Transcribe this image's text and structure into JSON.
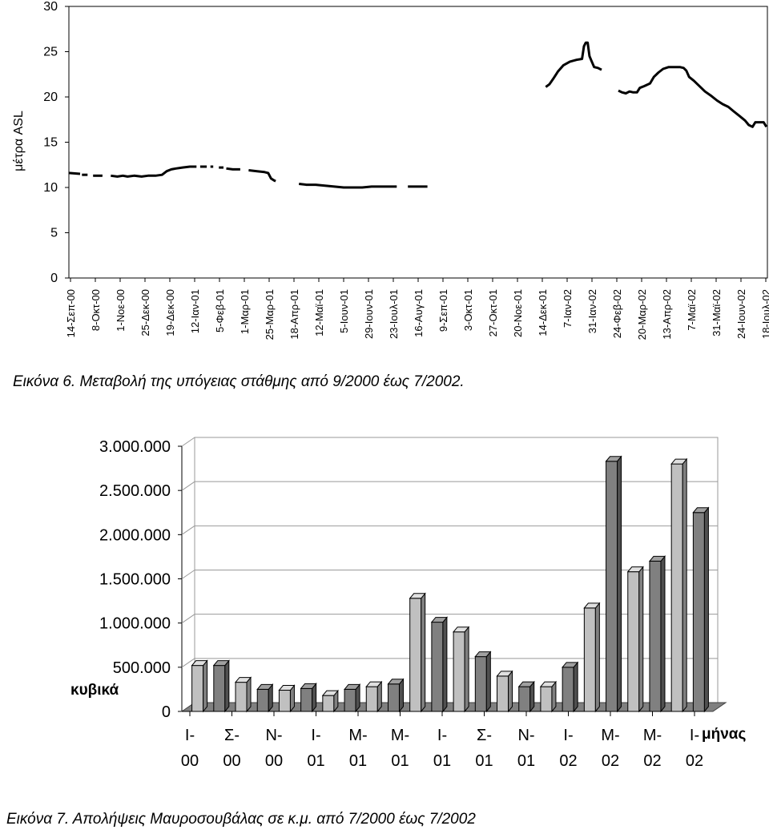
{
  "chart_data": [
    {
      "type": "line",
      "ylabel": "μέτρα ASL",
      "ylim": [
        0,
        30
      ],
      "yticks": [
        "0",
        "5",
        "10",
        "15",
        "20",
        "25",
        "30"
      ],
      "xticks": [
        "14-Σεπ-00",
        "8-Οκτ-00",
        "1-Νοε-00",
        "25-Δεκ-00",
        "19-Δεκ-00",
        "12-Ιαν-01",
        "5-Φεβ-01",
        "1-Μαρ-01",
        "25-Μαρ-01",
        "18-Απρ-01",
        "12-Μαϊ-01",
        "5-Ιουν-01",
        "29-Ιουν-01",
        "23-Ιουλ-01",
        "16-Αυγ-01",
        "9-Σεπ-01",
        "3-Οκτ-01",
        "27-Οκτ-01",
        "20-Νοε-01",
        "14-Δεκ-01",
        "7-Ιαν-02",
        "31-Ιαν-02",
        "24-Φεβ-02",
        "20-Μαρ-02",
        "13-Απρ-02",
        "7-Μαϊ-02",
        "31-Μαϊ-02",
        "24-Ιουν-02",
        "18-Ιουλ-02"
      ],
      "grid": false,
      "series": [
        {
          "segments": [
            [
              [
                0,
                11.6
              ],
              [
                1.2,
                11.5
              ]
            ],
            [
              [
                1.4,
                11.4
              ],
              [
                2.0,
                11.4
              ]
            ],
            [
              [
                2.6,
                11.3
              ],
              [
                3.4,
                11.3
              ],
              [
                3.6,
                11.3
              ]
            ],
            [
              [
                4.5,
                11.3
              ],
              [
                5.2,
                11.2
              ],
              [
                5.8,
                11.3
              ],
              [
                6.3,
                11.2
              ],
              [
                7.0,
                11.3
              ],
              [
                7.8,
                11.2
              ],
              [
                8.5,
                11.3
              ],
              [
                9.3,
                11.3
              ],
              [
                10.0,
                11.4
              ],
              [
                10.5,
                11.8
              ],
              [
                11.0,
                12.0
              ],
              [
                11.5,
                12.1
              ],
              [
                12.2,
                12.2
              ],
              [
                13.0,
                12.3
              ],
              [
                13.7,
                12.3
              ]
            ],
            [
              [
                14.1,
                12.3
              ],
              [
                14.8,
                12.3
              ]
            ],
            [
              [
                15.2,
                12.3
              ],
              [
                15.5,
                12.3
              ]
            ],
            [
              [
                16.1,
                12.2
              ],
              [
                16.6,
                12.2
              ]
            ],
            [
              [
                16.9,
                12.1
              ],
              [
                17.6,
                12.0
              ],
              [
                18.4,
                12.0
              ]
            ],
            [
              [
                19.3,
                11.9
              ],
              [
                20.2,
                11.8
              ],
              [
                21.0,
                11.7
              ],
              [
                21.4,
                11.6
              ],
              [
                21.7,
                11.0
              ],
              [
                22.0,
                10.8
              ],
              [
                22.2,
                10.7
              ]
            ],
            [
              [
                24.7,
                10.4
              ],
              [
                25.5,
                10.3
              ],
              [
                26.5,
                10.3
              ],
              [
                27.5,
                10.2
              ],
              [
                28.5,
                10.1
              ],
              [
                29.5,
                10.0
              ],
              [
                30.5,
                10.0
              ],
              [
                31.5,
                10.0
              ],
              [
                32.5,
                10.1
              ],
              [
                33.5,
                10.1
              ],
              [
                34.5,
                10.1
              ],
              [
                35.2,
                10.1
              ]
            ],
            [
              [
                36.4,
                10.1
              ],
              [
                37.5,
                10.1
              ],
              [
                38.5,
                10.1
              ]
            ],
            [
              [
                51.2,
                21.1
              ],
              [
                51.6,
                21.4
              ],
              [
                52.0,
                22.0
              ],
              [
                52.5,
                22.8
              ],
              [
                53.1,
                23.5
              ],
              [
                53.8,
                23.9
              ],
              [
                54.5,
                24.1
              ],
              [
                55.1,
                24.2
              ],
              [
                55.3,
                25.6
              ],
              [
                55.5,
                26.0
              ],
              [
                55.7,
                26.0
              ],
              [
                55.9,
                24.5
              ],
              [
                56.1,
                24.0
              ],
              [
                56.4,
                23.3
              ],
              [
                56.8,
                23.2
              ],
              [
                57.2,
                23.0
              ]
            ],
            [
              [
                59.0,
                20.7
              ],
              [
                59.4,
                20.5
              ],
              [
                59.8,
                20.4
              ],
              [
                60.2,
                20.6
              ],
              [
                60.6,
                20.5
              ],
              [
                61.0,
                20.5
              ],
              [
                61.3,
                21.0
              ],
              [
                61.8,
                21.2
              ],
              [
                62.4,
                21.5
              ],
              [
                62.8,
                22.2
              ],
              [
                63.3,
                22.7
              ],
              [
                63.8,
                23.1
              ],
              [
                64.4,
                23.3
              ],
              [
                65.0,
                23.3
              ],
              [
                65.6,
                23.3
              ],
              [
                66.0,
                23.2
              ],
              [
                66.3,
                22.9
              ],
              [
                66.6,
                22.2
              ],
              [
                67.1,
                21.8
              ],
              [
                67.7,
                21.2
              ],
              [
                68.3,
                20.6
              ],
              [
                69.0,
                20.1
              ],
              [
                69.6,
                19.6
              ],
              [
                70.2,
                19.2
              ],
              [
                70.8,
                18.9
              ],
              [
                71.4,
                18.4
              ],
              [
                72.0,
                17.9
              ],
              [
                72.6,
                17.4
              ],
              [
                73.0,
                16.9
              ],
              [
                73.4,
                16.7
              ],
              [
                73.7,
                17.2
              ],
              [
                74.0,
                17.2
              ],
              [
                74.3,
                17.2
              ],
              [
                74.6,
                17.2
              ],
              [
                74.9,
                16.7
              ]
            ]
          ]
        }
      ]
    },
    {
      "type": "bar",
      "ylabel": "κυβικά",
      "xlabel": "μήνας",
      "ylim": [
        0,
        3000000
      ],
      "yticks": [
        "0",
        "500.000",
        "1.000.000",
        "1.500.000",
        "2.000.000",
        "2.500.000",
        "3.000.000"
      ],
      "xticks": [
        [
          "Ι-",
          "00"
        ],
        [
          "Σ-",
          "00"
        ],
        [
          "Ν-",
          "00"
        ],
        [
          "Ι-",
          "01"
        ],
        [
          "Μ-",
          "01"
        ],
        [
          "Μ-",
          "01"
        ],
        [
          "Ι-",
          "01"
        ],
        [
          "Σ-",
          "01"
        ],
        [
          "Ν-",
          "01"
        ],
        [
          "Ι-",
          "02"
        ],
        [
          "Μ-",
          "02"
        ],
        [
          "Μ-",
          "02"
        ],
        [
          "Ι-",
          "02"
        ]
      ],
      "grid": true,
      "values": [
        520000,
        520000,
        330000,
        250000,
        240000,
        260000,
        180000,
        250000,
        280000,
        310000,
        1280000,
        1010000,
        900000,
        620000,
        400000,
        280000,
        280000,
        500000,
        1170000,
        2830000,
        1580000,
        1700000,
        2800000,
        2250000
      ]
    }
  ],
  "captions": {
    "fig6": "Εικόνα 6. Μεταβολή της υπόγειας στάθμης από 9/2000 έως 7/2002.",
    "fig7": "Εικόνα 7. Απολήψεις Μαυροσουβάλας σε κ.μ. από 7/2000 έως 7/2002"
  }
}
